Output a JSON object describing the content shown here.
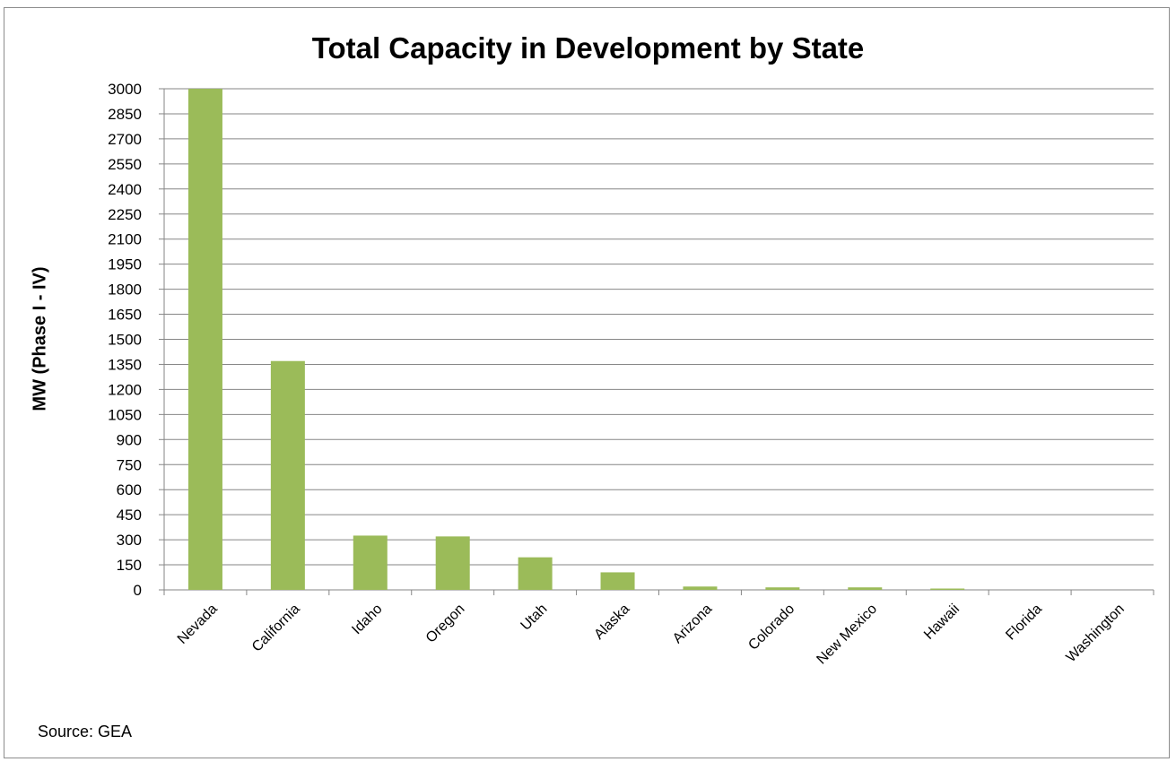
{
  "chart_data": {
    "type": "bar",
    "title": "Total Capacity in Development by State",
    "xlabel": "",
    "ylabel": "MW (Phase I - IV)",
    "ylim": [
      0,
      3000
    ],
    "yticks": [
      0,
      150,
      300,
      450,
      600,
      750,
      900,
      1050,
      1200,
      1350,
      1500,
      1650,
      1800,
      1950,
      2100,
      2250,
      2400,
      2550,
      2700,
      2850,
      3000
    ],
    "categories": [
      "Nevada",
      "California",
      "Idaho",
      "Oregon",
      "Utah",
      "Alaska",
      "Arizona",
      "Colorado",
      "New Mexico",
      "Hawaii",
      "Florida",
      "Washington"
    ],
    "values": [
      3000,
      1370,
      325,
      320,
      195,
      105,
      20,
      15,
      15,
      8,
      0,
      0
    ],
    "bar_color": "#9bbb59",
    "grid": true,
    "legend": "none"
  },
  "footer": {
    "source": "Source: GEA"
  }
}
